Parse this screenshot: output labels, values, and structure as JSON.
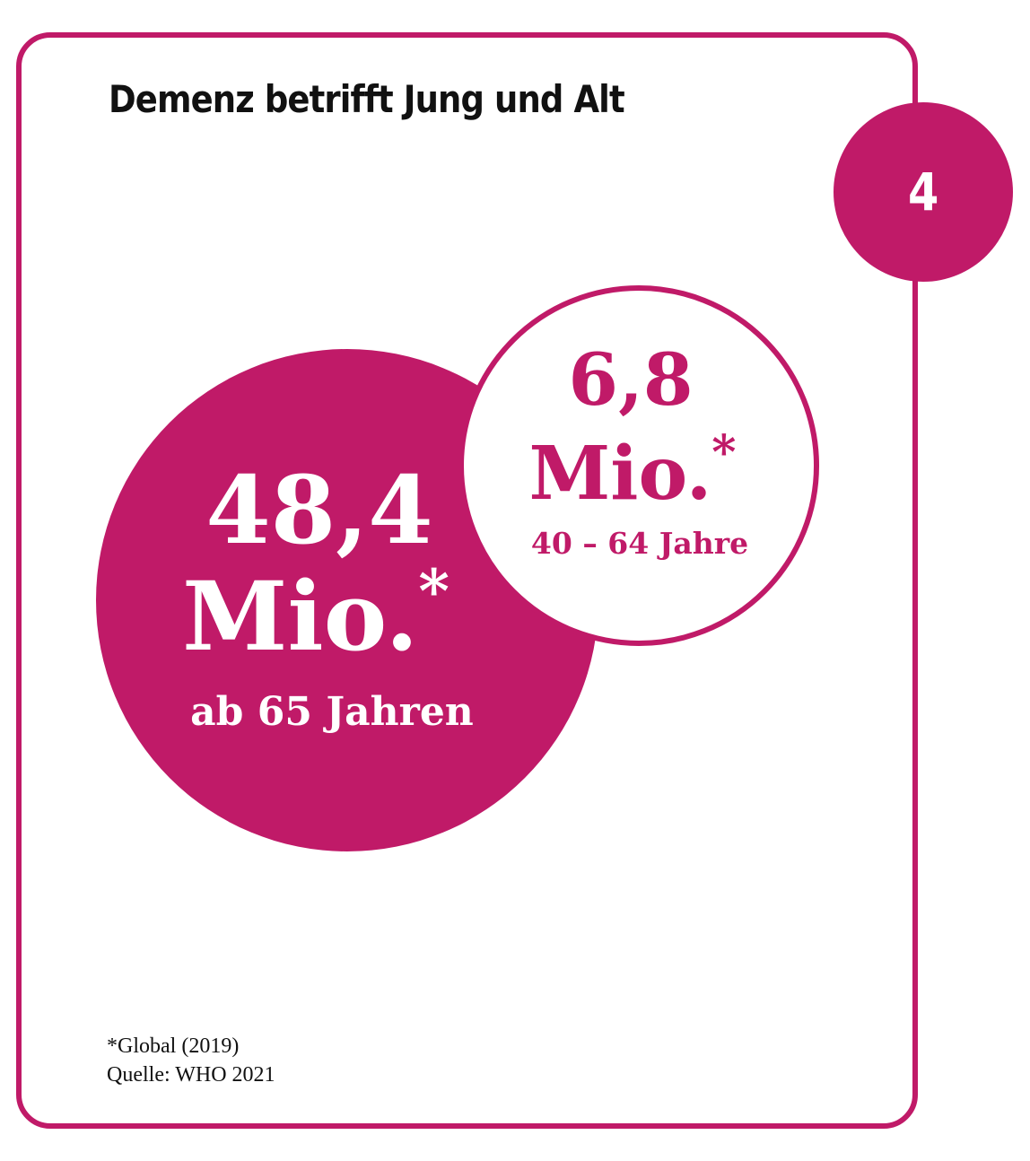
{
  "title": "Demenz betrifft Jung und Alt",
  "badge_number": "4",
  "colors": {
    "accent": "#c01a68",
    "text": "#111111",
    "background": "#ffffff"
  },
  "chart_data": {
    "type": "bubble",
    "title": "Demenz betrifft Jung und Alt",
    "unit": "Mio.*",
    "series": [
      {
        "label": "ab 65 Jahren",
        "value": 48.4,
        "value_text": "48,4",
        "unit_text": "Mio.*",
        "style": "filled"
      },
      {
        "label": "40 – 64 Jahre",
        "value": 6.8,
        "value_text": "6,8",
        "unit_text": "Mio.*",
        "style": "outline"
      }
    ]
  },
  "footnote": {
    "line1": "*Global (2019)",
    "line2": "Quelle: WHO 2021"
  }
}
